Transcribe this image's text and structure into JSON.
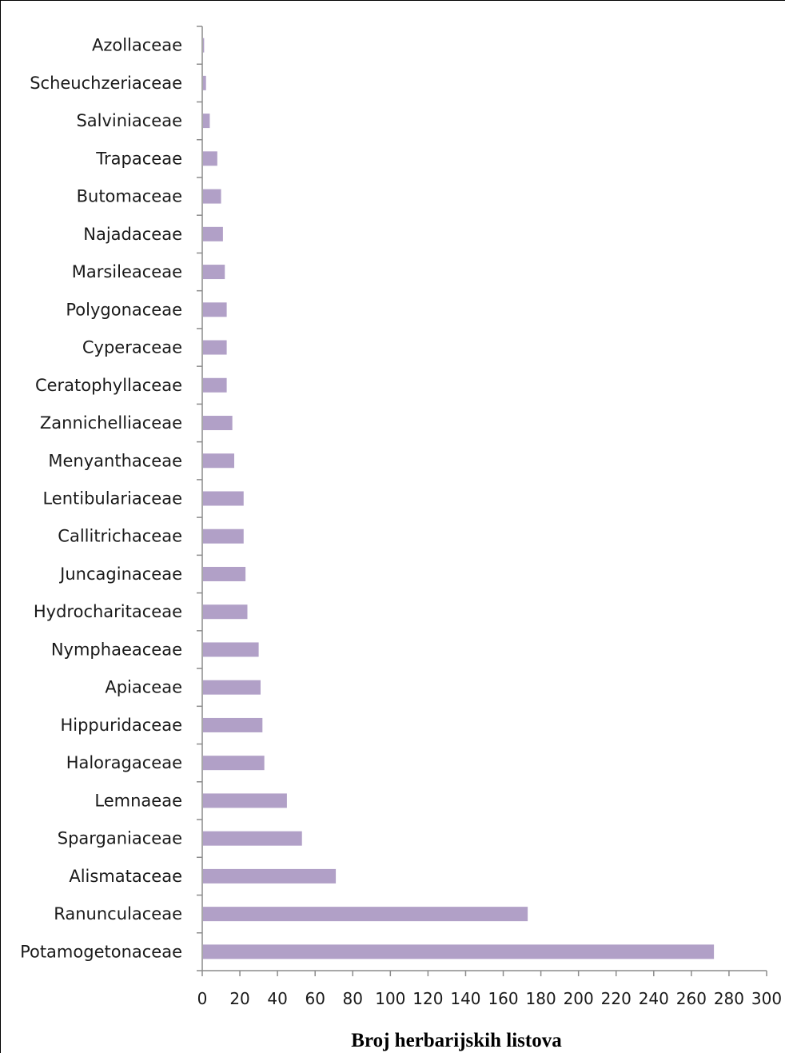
{
  "chart_data": {
    "type": "bar",
    "orientation": "horizontal",
    "categories": [
      "Azollaceae",
      "Scheuchzeriaceae",
      "Salviniaceae",
      "Trapaceae",
      "Butomaceae",
      "Najadaceae",
      "Marsileaceae",
      "Polygonaceae",
      "Cyperaceae",
      "Ceratophyllaceae",
      "Zannichelliaceae",
      "Menyanthaceae",
      "Lentibulariaceae",
      "Callitrichaceae",
      "Juncaginaceae",
      "Hydrocharitaceae",
      "Nymphaeaceae",
      "Apiaceae",
      "Hippuridaceae",
      "Haloragaceae",
      "Lemnaeae",
      "Sparganiaceae",
      "Alismataceae",
      "Ranunculaceae",
      "Potamogetonaceae"
    ],
    "values": [
      1,
      2,
      4,
      8,
      10,
      11,
      12,
      13,
      13,
      13,
      16,
      17,
      22,
      22,
      23,
      24,
      30,
      31,
      32,
      33,
      45,
      53,
      71,
      173,
      272
    ],
    "xlabel": "Broj herbarijskih listova",
    "ylabel": "",
    "title": "",
    "xlim": [
      0,
      300
    ],
    "xticks": [
      0,
      20,
      40,
      60,
      80,
      100,
      120,
      140,
      160,
      180,
      200,
      220,
      240,
      260,
      280,
      300
    ],
    "grid": false,
    "legend": "none",
    "bar_color": "#b1a0c7"
  }
}
